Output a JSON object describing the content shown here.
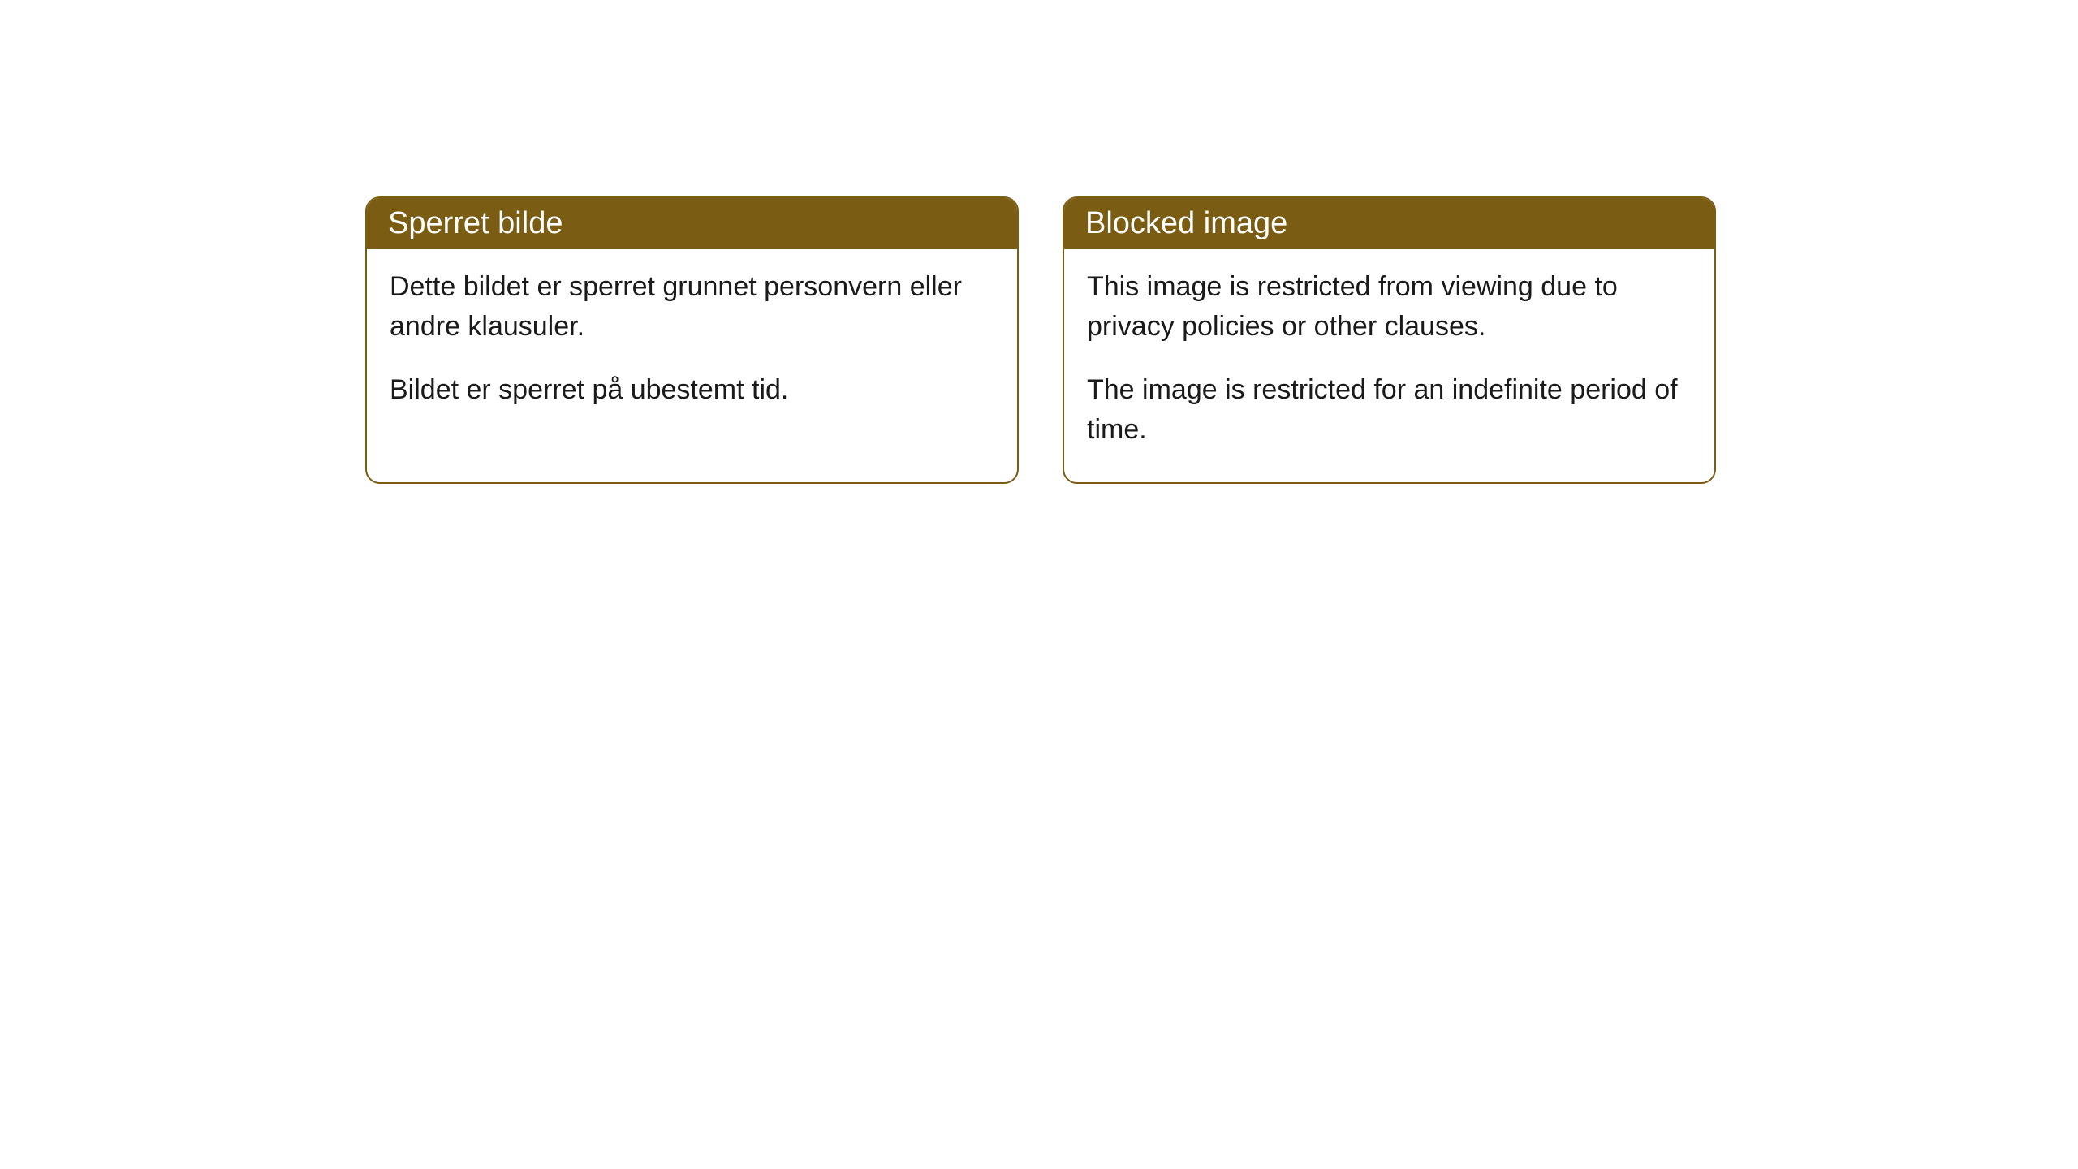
{
  "cards": [
    {
      "title": "Sperret bilde",
      "paragraph1": "Dette bildet er sperret grunnet personvern eller andre klausuler.",
      "paragraph2": "Bildet er sperret på ubestemt tid."
    },
    {
      "title": "Blocked image",
      "paragraph1": "This image is restricted from viewing due to privacy policies or other clauses.",
      "paragraph2": "The image is restricted for an indefinite period of time."
    }
  ],
  "styles": {
    "header_bg_color": "#7a5c13",
    "header_text_color": "#ffffff",
    "border_color": "#7a5c13",
    "body_bg_color": "#ffffff",
    "body_text_color": "#1a1a1a",
    "border_radius": 18,
    "header_fontsize": 38,
    "body_fontsize": 34
  }
}
